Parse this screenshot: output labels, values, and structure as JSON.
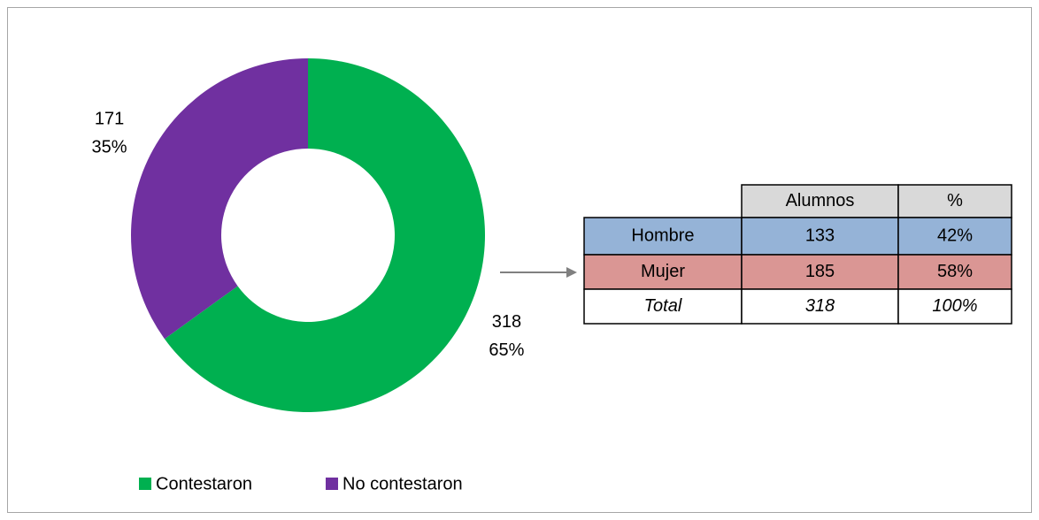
{
  "chart_data": {
    "type": "pie",
    "donut": true,
    "categories": [
      "Contestaron",
      "No contestaron"
    ],
    "values": [
      318,
      171
    ],
    "percent_labels": [
      "65%",
      "35%"
    ],
    "colors": [
      "#00b050",
      "#7030a0"
    ],
    "legend": "bottom"
  },
  "table": {
    "columns": [
      "Alumnos",
      "%"
    ],
    "rows": [
      [
        "Hombre",
        133,
        "42%"
      ],
      [
        "Mujer",
        185,
        "58%"
      ],
      [
        "Total",
        318,
        "100%"
      ]
    ]
  }
}
